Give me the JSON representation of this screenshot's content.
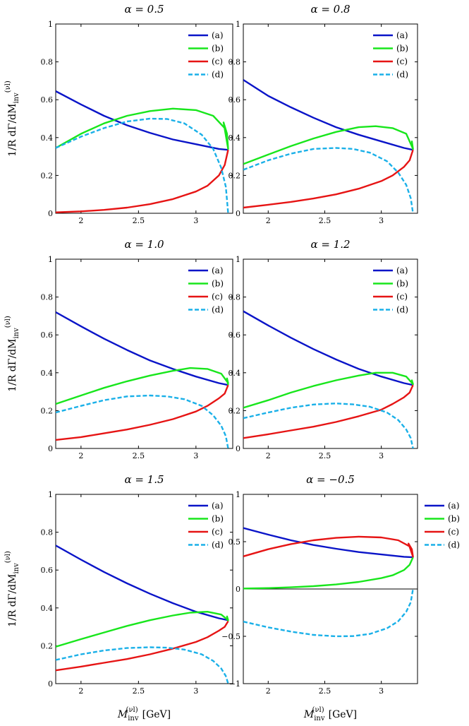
{
  "figure": {
    "ylabel": "1/R dΓ/dM_inv^(νl)",
    "xlabel": "M_inv^(νl) [GeV]"
  },
  "chart_data": [
    {
      "type": "line",
      "title": "α = 0.5",
      "xlabel": "",
      "ylabel": "1/R dΓ/dM_inv^(νl)",
      "xlim": [
        1.78,
        3.32
      ],
      "ylim": [
        0,
        1
      ],
      "xticks": [
        "2",
        "2.5",
        "3"
      ],
      "yticks": [
        "0",
        "0.2",
        "0.4",
        "0.6",
        "0.8",
        "1"
      ],
      "legend": "top-right",
      "series": [
        {
          "name": "(a)",
          "color": "#0a14c8",
          "dash": false,
          "x": [
            1.78,
            2.0,
            2.2,
            2.4,
            2.6,
            2.8,
            3.0,
            3.2,
            3.28
          ],
          "y": [
            0.645,
            0.575,
            0.515,
            0.465,
            0.425,
            0.39,
            0.365,
            0.34,
            0.335
          ]
        },
        {
          "name": "(b)",
          "color": "#18e61c",
          "dash": false,
          "x": [
            1.78,
            2.0,
            2.2,
            2.4,
            2.6,
            2.8,
            3.0,
            3.15,
            3.25,
            3.28,
            3.27,
            3.24,
            3.28
          ],
          "y": [
            0.345,
            0.42,
            0.475,
            0.515,
            0.54,
            0.553,
            0.545,
            0.515,
            0.45,
            0.34,
            0.42,
            0.48,
            0.34
          ]
        },
        {
          "name": "(c)",
          "color": "#e61414",
          "dash": false,
          "x": [
            1.78,
            2.0,
            2.2,
            2.4,
            2.6,
            2.8,
            3.0,
            3.1,
            3.2,
            3.25,
            3.28
          ],
          "y": [
            0.005,
            0.01,
            0.018,
            0.03,
            0.048,
            0.075,
            0.115,
            0.145,
            0.2,
            0.255,
            0.335
          ]
        },
        {
          "name": "(d)",
          "color": "#1ab0e8",
          "dash": true,
          "x": [
            1.78,
            2.0,
            2.2,
            2.4,
            2.6,
            2.75,
            2.9,
            3.05,
            3.15,
            3.22,
            3.26,
            3.28
          ],
          "y": [
            0.345,
            0.405,
            0.45,
            0.485,
            0.5,
            0.498,
            0.475,
            0.415,
            0.34,
            0.24,
            0.14,
            0.0
          ]
        }
      ]
    },
    {
      "type": "line",
      "title": "α = 0.8",
      "xlabel": "",
      "ylabel": "",
      "xlim": [
        1.78,
        3.32
      ],
      "ylim": [
        0,
        1
      ],
      "xticks": [
        "2",
        "2.5",
        "3"
      ],
      "yticks": [
        "0",
        "0.2",
        "0.4",
        "0.6",
        "0.8",
        "1"
      ],
      "legend": "top-right",
      "series": [
        {
          "name": "(a)",
          "color": "#0a14c8",
          "dash": false,
          "x": [
            1.78,
            2.0,
            2.2,
            2.4,
            2.6,
            2.8,
            3.0,
            3.2,
            3.28
          ],
          "y": [
            0.705,
            0.62,
            0.56,
            0.505,
            0.455,
            0.415,
            0.38,
            0.345,
            0.335
          ]
        },
        {
          "name": "(b)",
          "color": "#18e61c",
          "dash": false,
          "x": [
            1.78,
            2.0,
            2.2,
            2.4,
            2.6,
            2.8,
            2.95,
            3.1,
            3.22,
            3.28,
            3.27,
            3.28
          ],
          "y": [
            0.26,
            0.31,
            0.355,
            0.395,
            0.43,
            0.455,
            0.46,
            0.45,
            0.42,
            0.34,
            0.38,
            0.335
          ]
        },
        {
          "name": "(c)",
          "color": "#e61414",
          "dash": false,
          "x": [
            1.78,
            2.0,
            2.2,
            2.4,
            2.6,
            2.8,
            3.0,
            3.1,
            3.2,
            3.25,
            3.28
          ],
          "y": [
            0.03,
            0.045,
            0.06,
            0.078,
            0.1,
            0.13,
            0.17,
            0.2,
            0.245,
            0.28,
            0.335
          ]
        },
        {
          "name": "(d)",
          "color": "#1ab0e8",
          "dash": true,
          "x": [
            1.78,
            2.0,
            2.2,
            2.4,
            2.6,
            2.75,
            2.9,
            3.05,
            3.15,
            3.22,
            3.26,
            3.28
          ],
          "y": [
            0.23,
            0.28,
            0.315,
            0.34,
            0.345,
            0.34,
            0.32,
            0.275,
            0.215,
            0.15,
            0.08,
            0.0
          ]
        }
      ]
    },
    {
      "type": "line",
      "title": "α = 1.0",
      "xlabel": "",
      "ylabel": "1/R dΓ/dM_inv^(νl)",
      "xlim": [
        1.78,
        3.32
      ],
      "ylim": [
        0,
        1
      ],
      "xticks": [
        "2",
        "2.5",
        "3"
      ],
      "yticks": [
        "0",
        "0.2",
        "0.4",
        "0.6",
        "0.8",
        "1"
      ],
      "legend": "top-right",
      "series": [
        {
          "name": "(a)",
          "color": "#0a14c8",
          "dash": false,
          "x": [
            1.78,
            2.0,
            2.2,
            2.4,
            2.6,
            2.8,
            3.0,
            3.2,
            3.28
          ],
          "y": [
            0.72,
            0.645,
            0.58,
            0.52,
            0.465,
            0.42,
            0.38,
            0.345,
            0.335
          ]
        },
        {
          "name": "(b)",
          "color": "#18e61c",
          "dash": false,
          "x": [
            1.78,
            2.0,
            2.2,
            2.4,
            2.6,
            2.8,
            2.95,
            3.1,
            3.22,
            3.28,
            3.27,
            3.28
          ],
          "y": [
            0.235,
            0.28,
            0.32,
            0.355,
            0.385,
            0.41,
            0.425,
            0.42,
            0.395,
            0.345,
            0.37,
            0.335
          ]
        },
        {
          "name": "(c)",
          "color": "#e61414",
          "dash": false,
          "x": [
            1.78,
            2.0,
            2.2,
            2.4,
            2.6,
            2.8,
            3.0,
            3.1,
            3.2,
            3.25,
            3.28
          ],
          "y": [
            0.045,
            0.06,
            0.08,
            0.1,
            0.125,
            0.155,
            0.195,
            0.225,
            0.265,
            0.29,
            0.335
          ]
        },
        {
          "name": "(d)",
          "color": "#1ab0e8",
          "dash": true,
          "x": [
            1.78,
            2.0,
            2.2,
            2.4,
            2.6,
            2.75,
            2.9,
            3.05,
            3.15,
            3.22,
            3.26,
            3.28
          ],
          "y": [
            0.19,
            0.225,
            0.255,
            0.275,
            0.28,
            0.275,
            0.26,
            0.225,
            0.175,
            0.12,
            0.065,
            0.0
          ]
        }
      ]
    },
    {
      "type": "line",
      "title": "α = 1.2",
      "xlabel": "",
      "ylabel": "",
      "xlim": [
        1.78,
        3.32
      ],
      "ylim": [
        0,
        1
      ],
      "xticks": [
        "2",
        "2.5",
        "3"
      ],
      "yticks": [
        "0",
        "0.2",
        "0.4",
        "0.6",
        "0.8",
        "1"
      ],
      "legend": "top-right",
      "series": [
        {
          "name": "(a)",
          "color": "#0a14c8",
          "dash": false,
          "x": [
            1.78,
            2.0,
            2.2,
            2.4,
            2.6,
            2.8,
            3.0,
            3.2,
            3.28
          ],
          "y": [
            0.725,
            0.65,
            0.585,
            0.525,
            0.47,
            0.42,
            0.38,
            0.345,
            0.335
          ]
        },
        {
          "name": "(b)",
          "color": "#18e61c",
          "dash": false,
          "x": [
            1.78,
            2.0,
            2.2,
            2.4,
            2.6,
            2.8,
            2.95,
            3.1,
            3.22,
            3.28,
            3.27,
            3.28
          ],
          "y": [
            0.215,
            0.255,
            0.295,
            0.33,
            0.36,
            0.385,
            0.4,
            0.4,
            0.38,
            0.34,
            0.36,
            0.335
          ]
        },
        {
          "name": "(c)",
          "color": "#e61414",
          "dash": false,
          "x": [
            1.78,
            2.0,
            2.2,
            2.4,
            2.6,
            2.8,
            3.0,
            3.1,
            3.2,
            3.25,
            3.28
          ],
          "y": [
            0.055,
            0.075,
            0.095,
            0.115,
            0.14,
            0.17,
            0.205,
            0.235,
            0.27,
            0.295,
            0.335
          ]
        },
        {
          "name": "(d)",
          "color": "#1ab0e8",
          "dash": true,
          "x": [
            1.78,
            2.0,
            2.2,
            2.4,
            2.6,
            2.75,
            2.9,
            3.05,
            3.15,
            3.22,
            3.26,
            3.28
          ],
          "y": [
            0.16,
            0.19,
            0.215,
            0.232,
            0.238,
            0.233,
            0.22,
            0.19,
            0.15,
            0.1,
            0.055,
            0.0
          ]
        }
      ]
    },
    {
      "type": "line",
      "title": "α = 1.5",
      "xlabel": "M_inv^(νl) [GeV]",
      "ylabel": "1/R dΓ/dM_inv^(νl)",
      "xlim": [
        1.78,
        3.32
      ],
      "ylim": [
        0,
        1
      ],
      "xticks": [
        "2",
        "2.5",
        "3"
      ],
      "yticks": [
        "0",
        "0.2",
        "0.4",
        "0.6",
        "0.8",
        "1"
      ],
      "legend": "top-right",
      "series": [
        {
          "name": "(a)",
          "color": "#0a14c8",
          "dash": false,
          "x": [
            1.78,
            2.0,
            2.2,
            2.4,
            2.6,
            2.8,
            3.0,
            3.2,
            3.28
          ],
          "y": [
            0.73,
            0.655,
            0.59,
            0.53,
            0.475,
            0.425,
            0.38,
            0.345,
            0.335
          ]
        },
        {
          "name": "(b)",
          "color": "#18e61c",
          "dash": false,
          "x": [
            1.78,
            2.0,
            2.2,
            2.4,
            2.6,
            2.8,
            2.95,
            3.1,
            3.22,
            3.28,
            3.27,
            3.28
          ],
          "y": [
            0.195,
            0.235,
            0.27,
            0.305,
            0.335,
            0.36,
            0.375,
            0.38,
            0.365,
            0.335,
            0.355,
            0.33
          ]
        },
        {
          "name": "(c)",
          "color": "#e61414",
          "dash": false,
          "x": [
            1.78,
            2.0,
            2.2,
            2.4,
            2.6,
            2.8,
            3.0,
            3.1,
            3.2,
            3.25,
            3.28
          ],
          "y": [
            0.07,
            0.09,
            0.11,
            0.13,
            0.155,
            0.185,
            0.22,
            0.245,
            0.28,
            0.3,
            0.33
          ]
        },
        {
          "name": "(d)",
          "color": "#1ab0e8",
          "dash": true,
          "x": [
            1.78,
            2.0,
            2.2,
            2.4,
            2.6,
            2.75,
            2.9,
            3.05,
            3.15,
            3.22,
            3.26,
            3.28
          ],
          "y": [
            0.125,
            0.155,
            0.175,
            0.188,
            0.192,
            0.19,
            0.18,
            0.155,
            0.12,
            0.08,
            0.04,
            0.0
          ]
        }
      ]
    },
    {
      "type": "line",
      "title": "α = −0.5",
      "xlabel": "M_inv^(νl) [GeV]",
      "ylabel": "",
      "xlim": [
        1.78,
        3.32
      ],
      "ylim": [
        -1,
        1
      ],
      "xticks": [
        "2",
        "2.5",
        "3"
      ],
      "yticks": [
        "−1",
        "−0.5",
        "0",
        "0.5",
        "1"
      ],
      "zero_line": true,
      "legend": "outside-right",
      "series": [
        {
          "name": "(a)",
          "color": "#0a14c8",
          "dash": false,
          "x": [
            1.78,
            2.0,
            2.2,
            2.4,
            2.6,
            2.8,
            3.0,
            3.2,
            3.28
          ],
          "y": [
            0.645,
            0.575,
            0.515,
            0.465,
            0.425,
            0.39,
            0.365,
            0.34,
            0.335
          ]
        },
        {
          "name": "(b)",
          "color": "#18e61c",
          "dash": false,
          "x": [
            1.78,
            2.0,
            2.2,
            2.4,
            2.6,
            2.8,
            3.0,
            3.1,
            3.2,
            3.25,
            3.28
          ],
          "y": [
            0.005,
            0.01,
            0.018,
            0.03,
            0.048,
            0.075,
            0.115,
            0.145,
            0.2,
            0.255,
            0.335
          ]
        },
        {
          "name": "(c)",
          "color": "#e61414",
          "dash": false,
          "x": [
            1.78,
            2.0,
            2.2,
            2.4,
            2.6,
            2.8,
            3.0,
            3.15,
            3.25,
            3.28,
            3.27,
            3.24,
            3.28
          ],
          "y": [
            0.345,
            0.42,
            0.475,
            0.515,
            0.54,
            0.553,
            0.545,
            0.515,
            0.45,
            0.34,
            0.42,
            0.48,
            0.34
          ]
        },
        {
          "name": "(d)",
          "color": "#1ab0e8",
          "dash": true,
          "x": [
            1.78,
            2.0,
            2.2,
            2.4,
            2.6,
            2.75,
            2.9,
            3.05,
            3.15,
            3.22,
            3.26,
            3.28
          ],
          "y": [
            -0.345,
            -0.405,
            -0.45,
            -0.485,
            -0.5,
            -0.498,
            -0.475,
            -0.415,
            -0.34,
            -0.24,
            -0.14,
            0.0
          ]
        }
      ]
    }
  ]
}
